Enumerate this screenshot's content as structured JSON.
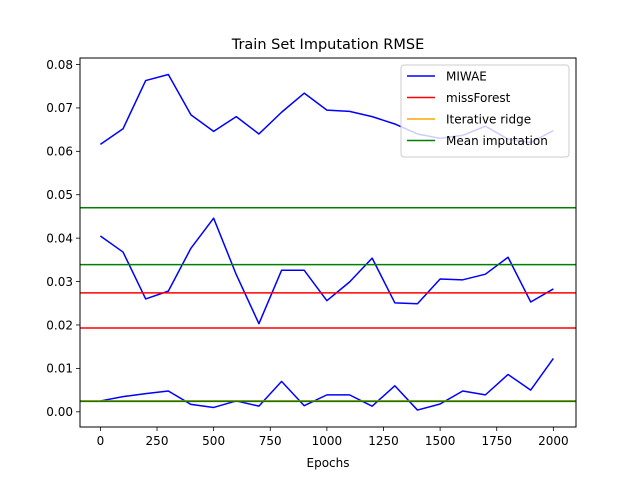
{
  "chart_data": {
    "type": "line",
    "title": "Train Set Imputation RMSE",
    "xlabel": "Epochs",
    "ylabel": "",
    "xlim": [
      -90,
      2100
    ],
    "ylim": [
      -0.0035,
      0.0815
    ],
    "xticks": [
      0,
      250,
      500,
      750,
      1000,
      1250,
      1500,
      1750,
      2000
    ],
    "xtick_labels": [
      "0",
      "250",
      "500",
      "750",
      "1000",
      "1250",
      "1500",
      "1750",
      "2000"
    ],
    "yticks": [
      0.0,
      0.01,
      0.02,
      0.03,
      0.04,
      0.05,
      0.06,
      0.07,
      0.08
    ],
    "ytick_labels": [
      "0.00",
      "0.01",
      "0.02",
      "0.03",
      "0.04",
      "0.05",
      "0.06",
      "0.07",
      "0.08"
    ],
    "grid": false,
    "legend_position": "top-right",
    "x": [
      0,
      100,
      200,
      300,
      400,
      500,
      600,
      700,
      800,
      900,
      1000,
      1100,
      1200,
      1300,
      1400,
      1500,
      1600,
      1700,
      1800,
      1900,
      2000
    ],
    "series": [
      {
        "name": "MIWAE",
        "color": "#0000ff",
        "lines": [
          [
            0.0616,
            0.0652,
            0.0763,
            0.0777,
            0.0684,
            0.0646,
            0.068,
            0.064,
            0.069,
            0.0734,
            0.0695,
            0.0692,
            0.068,
            0.0663,
            0.064,
            0.063,
            0.0637,
            0.0658,
            0.0628,
            0.062,
            0.0648
          ],
          [
            0.0405,
            0.0368,
            0.026,
            0.0278,
            0.0377,
            0.0446,
            0.0316,
            0.0203,
            0.0326,
            0.0326,
            0.0256,
            0.0299,
            0.0354,
            0.0251,
            0.0249,
            0.0306,
            0.0304,
            0.0317,
            0.0356,
            0.0253,
            0.0283
          ],
          [
            0.0025,
            0.0035,
            0.0042,
            0.0048,
            0.0017,
            0.001,
            0.0025,
            0.0013,
            0.007,
            0.0014,
            0.0039,
            0.0039,
            0.0013,
            0.006,
            0.0004,
            0.0018,
            0.0048,
            0.0039,
            0.0086,
            0.005,
            0.0123
          ]
        ]
      },
      {
        "name": "missForest",
        "color": "#ff0000",
        "constant": [
          0.0274,
          0.0193,
          0.0025
        ]
      },
      {
        "name": "Iterative ridge",
        "color": "#ffa500",
        "constant": [
          0.0025
        ]
      },
      {
        "name": "Mean imputation",
        "color": "#008000",
        "constant": [
          0.047,
          0.0339,
          0.0024
        ]
      }
    ]
  }
}
